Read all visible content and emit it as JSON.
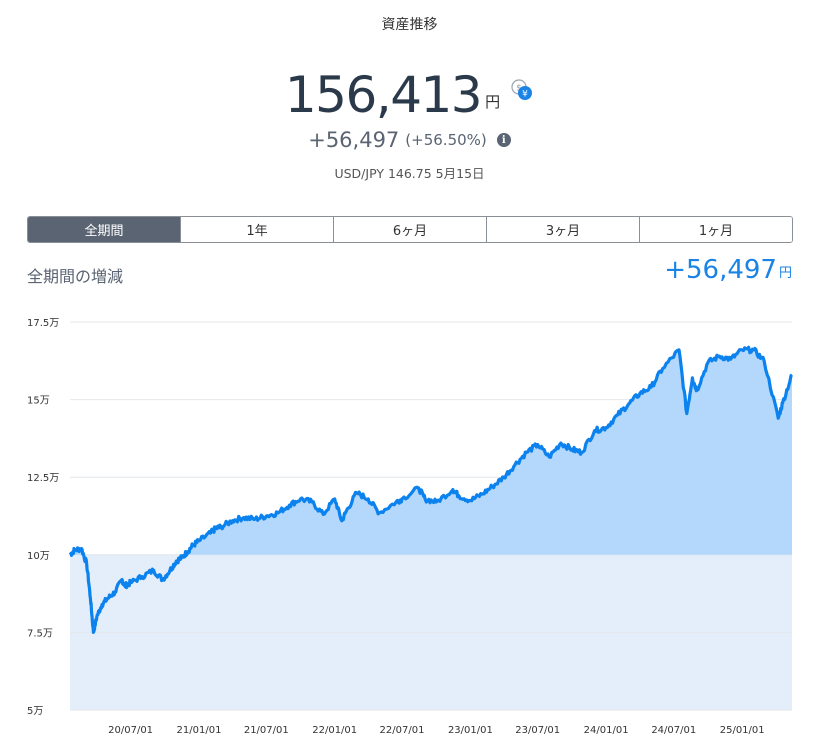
{
  "page": {
    "title": "資産推移"
  },
  "summary": {
    "total": "156,413",
    "unit": "円",
    "change": "+56,497",
    "change_pct": "(+56.50%)",
    "rate": "USD/JPY 146.75 5月15日"
  },
  "tabs": [
    {
      "label": "全期間",
      "active": true
    },
    {
      "label": "1年",
      "active": false
    },
    {
      "label": "6ヶ月",
      "active": false
    },
    {
      "label": "3ヶ月",
      "active": false
    },
    {
      "label": "1ヶ月",
      "active": false
    }
  ],
  "period": {
    "label": "全期間の増減",
    "change": "+56,497",
    "unit": "円"
  },
  "icons": {
    "currency_toggle": "dollar-yen-icon",
    "info": "info-icon"
  },
  "colors": {
    "line": "#0b82ee",
    "fill_above": "#b3d8fb",
    "fill_below": "#e3eefa",
    "accent": "#1a83e6",
    "active_tab": "#5b6472"
  },
  "chart_data": {
    "type": "area",
    "ylim": [
      50000,
      175000
    ],
    "yticks": [
      175000,
      150000,
      125000,
      100000,
      75000,
      50000
    ],
    "ytick_labels": [
      "17.5万",
      "15万",
      "12.5万",
      "10万",
      "7.5万",
      "5万"
    ],
    "xticks": [
      "20/07/01",
      "21/01/01",
      "21/07/01",
      "22/01/01",
      "22/07/01",
      "23/01/01",
      "23/07/01",
      "24/01/01",
      "24/07/01",
      "25/01/01"
    ],
    "baseline": 100000,
    "grid": true,
    "series": [
      {
        "x": [
          "20/01/20",
          "20/02/01",
          "20/02/20",
          "20/03/05",
          "20/03/15",
          "20/03/23",
          "20/04/01",
          "20/04/15",
          "20/05/01",
          "20/05/20",
          "20/06/08",
          "20/06/15",
          "20/07/01",
          "20/08/01",
          "20/09/01",
          "20/09/25",
          "20/10/15",
          "20/11/01",
          "20/11/15",
          "20/12/01",
          "20/12/15",
          "21/01/01",
          "21/02/01",
          "21/02/15",
          "21/03/01",
          "21/04/01",
          "21/05/01",
          "21/06/01",
          "21/07/01",
          "21/08/01",
          "21/09/01",
          "21/10/01",
          "21/11/01",
          "21/12/01",
          "22/01/01",
          "22/01/20",
          "22/02/01",
          "22/03/01",
          "22/04/01",
          "22/05/01",
          "22/06/15",
          "22/07/01",
          "22/08/15",
          "22/09/01",
          "22/10/01",
          "22/11/15",
          "22/12/01",
          "23/01/01",
          "23/02/01",
          "23/03/01",
          "23/04/01",
          "23/05/01",
          "23/06/01",
          "23/07/01",
          "23/08/01",
          "23/09/01",
          "23/10/01",
          "23/10/27",
          "23/12/01",
          "24/01/01",
          "24/02/01",
          "24/03/01",
          "24/04/01",
          "24/05/01",
          "24/06/01",
          "24/07/15",
          "24/08/05",
          "24/08/20",
          "24/09/01",
          "24/10/01",
          "24/11/01",
          "24/12/01",
          "25/01/01",
          "25/02/01",
          "25/03/01",
          "25/04/08",
          "25/04/20",
          "25/05/15"
        ],
        "y": [
          100000,
          101500,
          102000,
          97000,
          86000,
          75000,
          80000,
          84000,
          86000,
          88000,
          92000,
          90000,
          91000,
          93000,
          95000,
          92000,
          95000,
          98000,
          99000,
          101000,
          103000,
          104500,
          107000,
          108500,
          109000,
          111000,
          112000,
          111500,
          112500,
          113500,
          116000,
          118000,
          117000,
          113000,
          118000,
          111000,
          114000,
          120000,
          118000,
          113500,
          117000,
          118000,
          121500,
          118000,
          117000,
          121000,
          119000,
          117500,
          119500,
          122000,
          125000,
          129000,
          133000,
          135500,
          131500,
          136000,
          134000,
          133000,
          140000,
          141000,
          145000,
          148500,
          152000,
          154000,
          160000,
          166000,
          145500,
          157000,
          153000,
          162000,
          164000,
          163000,
          166000,
          166000,
          162500,
          144000,
          149000,
          158000
        ]
      }
    ]
  }
}
